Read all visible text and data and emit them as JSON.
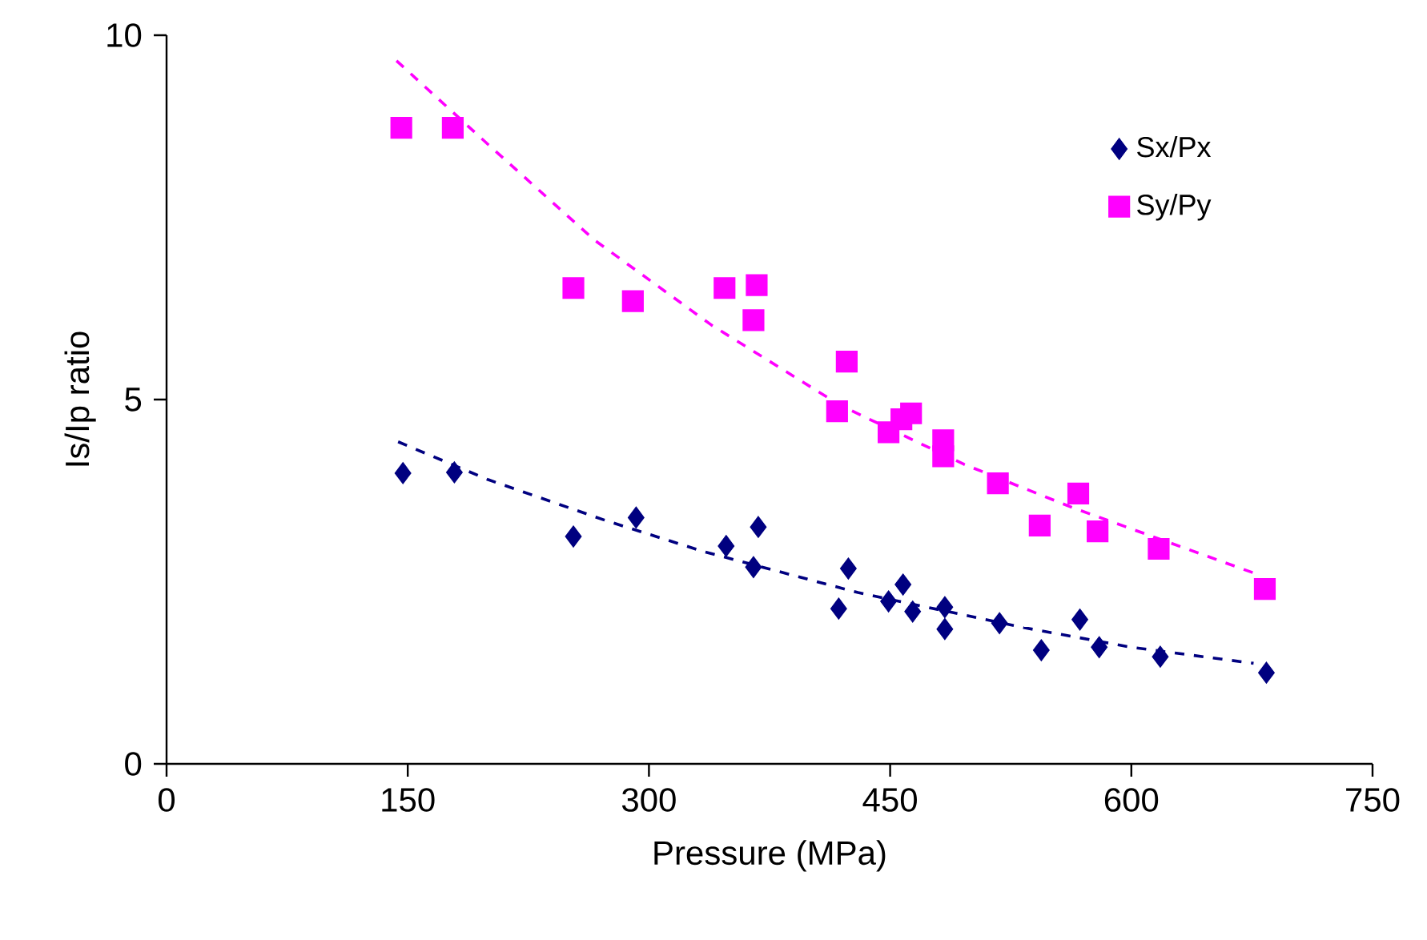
{
  "chart_data": {
    "type": "scatter",
    "xlabel": "Pressure (MPa)",
    "ylabel": "Is/Ip ratio",
    "xlim": [
      0,
      750
    ],
    "xticks": [
      0,
      150,
      300,
      450,
      600,
      750
    ],
    "ylim": [
      0,
      10
    ],
    "yticks": [
      0,
      5,
      10
    ],
    "grid": false,
    "legend": "top right",
    "series": [
      {
        "name": "Sx/Px",
        "color": "#000080",
        "marker": "diamond",
        "x": [
          147,
          179,
          253,
          292,
          348,
          368,
          365,
          424,
          418,
          449,
          458,
          464,
          484,
          484,
          518,
          544,
          568,
          580,
          618,
          684
        ],
        "values": [
          3.99,
          4.0,
          3.12,
          3.38,
          2.99,
          3.25,
          2.7,
          2.68,
          2.13,
          2.23,
          2.46,
          2.09,
          2.15,
          1.85,
          1.93,
          1.56,
          1.98,
          1.6,
          1.47,
          1.25
        ]
      },
      {
        "name": "Sy/Py",
        "color": "#ff00ff",
        "marker": "square",
        "x": [
          146,
          178,
          253,
          290,
          347,
          367,
          365,
          423,
          417,
          449,
          457,
          463,
          483,
          483,
          517,
          543,
          567,
          579,
          617,
          683
        ],
        "values": [
          8.73,
          8.73,
          6.53,
          6.35,
          6.53,
          6.57,
          6.09,
          5.52,
          4.84,
          4.55,
          4.73,
          4.81,
          4.44,
          4.22,
          3.85,
          3.27,
          3.71,
          3.19,
          2.95,
          2.4
        ]
      },
      {
        "type": "line",
        "color": "#000080",
        "line_style": "dashed",
        "x": [
          144,
          200,
          273,
          333,
          430,
          533,
          600,
          676
        ],
        "values": [
          4.42,
          3.9,
          3.34,
          2.92,
          2.35,
          1.87,
          1.6,
          1.38
        ]
      },
      {
        "type": "line",
        "color": "#ff00ff",
        "line_style": "dashed",
        "x": [
          143,
          200,
          266,
          339,
          419,
          496,
          563,
          676
        ],
        "values": [
          9.65,
          8.5,
          7.19,
          6.02,
          4.92,
          4.11,
          3.52,
          2.62
        ]
      }
    ]
  }
}
